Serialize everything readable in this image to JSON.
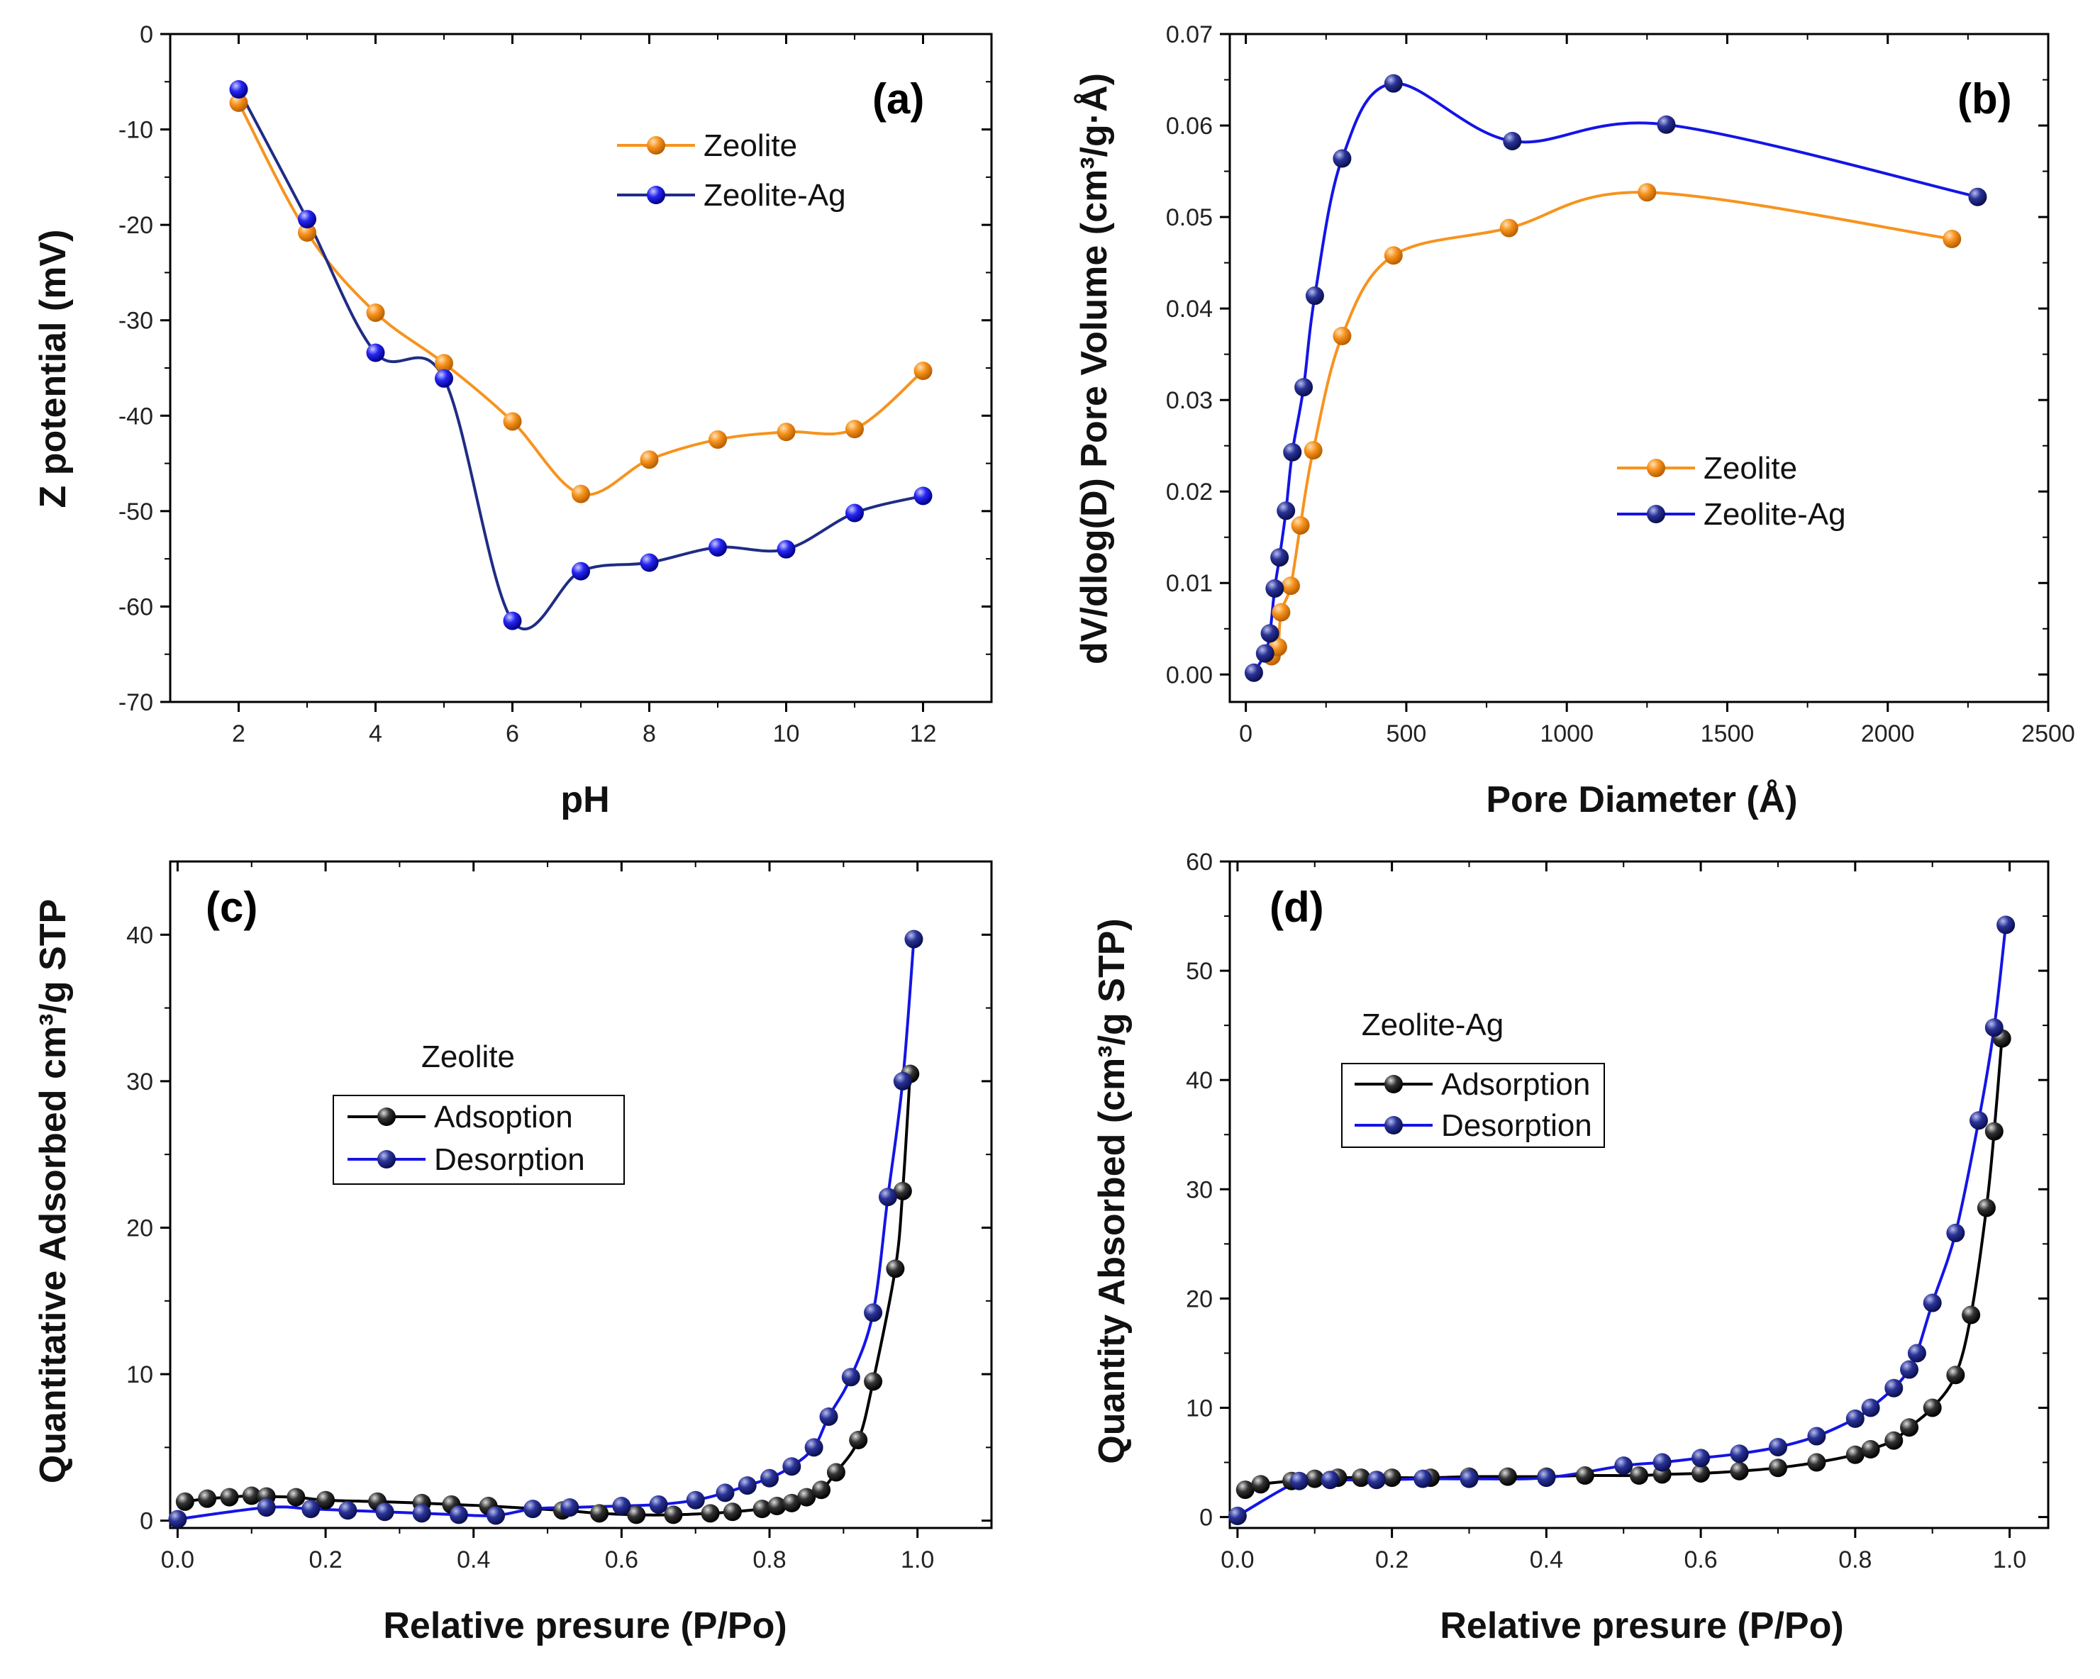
{
  "colors": {
    "orange": "#F7931E",
    "blue": "#1414E6",
    "navy": "#1F2C85",
    "black": "#000000"
  },
  "chart_data": [
    {
      "id": "a",
      "type": "line",
      "panel_tag": "(a)",
      "xlabel": "pH",
      "ylabel": "Z potential (mV)",
      "xlim": [
        1,
        13
      ],
      "ylim": [
        -70,
        0
      ],
      "xticks": [
        2,
        4,
        6,
        8,
        10,
        12
      ],
      "yticks": [
        0,
        -10,
        -20,
        -30,
        -40,
        -50,
        -60,
        -70
      ],
      "xtick_labels": [
        "2",
        "4",
        "6",
        "8",
        "10",
        "12"
      ],
      "ytick_labels": [
        "0",
        "-10",
        "-20",
        "-30",
        "-40",
        "-50",
        "-60",
        "-70"
      ],
      "legend": {
        "placement": "top-right",
        "boxed": false
      },
      "series": [
        {
          "name": "Zeolite",
          "marker": "orange",
          "line": "orange",
          "x": [
            2,
            3,
            4,
            5,
            6,
            7,
            8,
            9,
            10,
            11,
            12
          ],
          "y": [
            -7.2,
            -20.8,
            -29.2,
            -34.5,
            -40.6,
            -48.2,
            -44.6,
            -42.5,
            -41.7,
            -41.4,
            -35.3
          ]
        },
        {
          "name": "Zeolite-Ag",
          "marker": "blue",
          "line": "navy",
          "x": [
            2,
            3,
            4,
            5,
            6,
            7,
            8,
            9,
            10,
            11,
            12
          ],
          "y": [
            -5.8,
            -19.4,
            -33.4,
            -36.1,
            -61.5,
            -56.3,
            -55.4,
            -53.8,
            -54.0,
            -50.2,
            -48.4
          ]
        }
      ]
    },
    {
      "id": "b",
      "type": "line",
      "panel_tag": "(b)",
      "xlabel": "Pore Diameter (Å)",
      "ylabel": "dV/dlog(D) Pore Volume (cm³/g·Å)",
      "xlim": [
        -50,
        2500
      ],
      "ylim": [
        -0.003,
        0.07
      ],
      "xticks": [
        0,
        500,
        1000,
        1500,
        2000,
        2500
      ],
      "yticks": [
        0,
        0.01,
        0.02,
        0.03,
        0.04,
        0.05,
        0.06,
        0.07
      ],
      "xtick_labels": [
        "0",
        "500",
        "1000",
        "1500",
        "2000",
        "2500"
      ],
      "ytick_labels": [
        "0.00",
        "0.01",
        "0.02",
        "0.03",
        "0.04",
        "0.05",
        "0.06",
        "0.07"
      ],
      "legend": {
        "placement": "center-right",
        "boxed": false
      },
      "series": [
        {
          "name": "Zeolite",
          "marker": "orange",
          "line": "orange",
          "x": [
            80,
            100,
            110,
            140,
            170,
            210,
            300,
            460,
            820,
            1250,
            2200
          ],
          "y": [
            0.002,
            0.003,
            0.0068,
            0.0097,
            0.0163,
            0.0245,
            0.037,
            0.0458,
            0.0488,
            0.0527,
            0.0476
          ]
        },
        {
          "name": "Zeolite-Ag",
          "marker": "navy",
          "line": "blue",
          "x": [
            25,
            60,
            75,
            90,
            105,
            125,
            145,
            180,
            215,
            300,
            460,
            830,
            1310,
            2280
          ],
          "y": [
            0.0002,
            0.0023,
            0.0045,
            0.0094,
            0.0128,
            0.0179,
            0.0243,
            0.0314,
            0.0414,
            0.0564,
            0.0646,
            0.0583,
            0.0601,
            0.0522
          ]
        }
      ]
    },
    {
      "id": "c",
      "type": "line",
      "panel_tag": "(c)",
      "xlabel": "Relative presure (P/Po)",
      "ylabel": "Quantitative Adsorbed  cm³/g STP",
      "xlim": [
        -0.01,
        1.1
      ],
      "ylim": [
        -0.5,
        45
      ],
      "xticks": [
        0,
        0.2,
        0.4,
        0.6,
        0.8,
        1.0
      ],
      "yticks": [
        0,
        10,
        20,
        30,
        40
      ],
      "xtick_labels": [
        "0.0",
        "0.2",
        "0.4",
        "0.6",
        "0.8",
        "1.0"
      ],
      "ytick_labels": [
        "0",
        "10",
        "20",
        "30",
        "40"
      ],
      "legend": {
        "placement": "center-left",
        "boxed": true,
        "title": "Zeolite"
      },
      "series": [
        {
          "name": "Adsoption",
          "marker": "black",
          "line": "black",
          "x": [
            0.01,
            0.04,
            0.07,
            0.1,
            0.12,
            0.16,
            0.2,
            0.27,
            0.33,
            0.37,
            0.42,
            0.52,
            0.57,
            0.62,
            0.67,
            0.72,
            0.75,
            0.79,
            0.81,
            0.83,
            0.85,
            0.87,
            0.89,
            0.92,
            0.94,
            0.97,
            0.98,
            0.99
          ],
          "y": [
            1.3,
            1.5,
            1.6,
            1.7,
            1.65,
            1.6,
            1.4,
            1.3,
            1.2,
            1.1,
            1.0,
            0.7,
            0.5,
            0.4,
            0.4,
            0.5,
            0.6,
            0.8,
            1.0,
            1.2,
            1.6,
            2.1,
            3.3,
            5.5,
            9.5,
            17.2,
            22.5,
            30.5
          ]
        },
        {
          "name": "Desorption",
          "marker": "navy",
          "line": "blue",
          "x": [
            0.0,
            0.12,
            0.18,
            0.23,
            0.28,
            0.33,
            0.38,
            0.43,
            0.48,
            0.53,
            0.6,
            0.65,
            0.7,
            0.74,
            0.77,
            0.8,
            0.83,
            0.86,
            0.88,
            0.91,
            0.94,
            0.96,
            0.98,
            0.995
          ],
          "y": [
            0.1,
            0.9,
            0.8,
            0.7,
            0.6,
            0.5,
            0.4,
            0.35,
            0.8,
            0.9,
            1.0,
            1.1,
            1.4,
            1.9,
            2.4,
            2.9,
            3.7,
            5.0,
            7.1,
            9.8,
            14.2,
            22.1,
            30.0,
            39.7
          ]
        }
      ]
    },
    {
      "id": "d",
      "type": "line",
      "panel_tag": "(d)",
      "xlabel": "Relative presure (P/Po)",
      "ylabel": "Quantity Absorbed (cm³/g STP)",
      "xlim": [
        -0.01,
        1.05
      ],
      "ylim": [
        -1,
        60
      ],
      "xticks": [
        0,
        0.2,
        0.4,
        0.6,
        0.8,
        1.0
      ],
      "yticks": [
        0,
        10,
        20,
        30,
        40,
        50,
        60
      ],
      "xtick_labels": [
        "0.0",
        "0.2",
        "0.4",
        "0.6",
        "0.8",
        "1.0"
      ],
      "ytick_labels": [
        "0",
        "10",
        "20",
        "30",
        "40",
        "50",
        "60"
      ],
      "legend": {
        "placement": "center-left",
        "boxed": true,
        "title": "Zeolite-Ag"
      },
      "series": [
        {
          "name": "Adsorption",
          "marker": "black",
          "line": "black",
          "x": [
            0.01,
            0.03,
            0.07,
            0.1,
            0.13,
            0.16,
            0.2,
            0.25,
            0.3,
            0.35,
            0.4,
            0.45,
            0.52,
            0.55,
            0.6,
            0.65,
            0.7,
            0.75,
            0.8,
            0.82,
            0.85,
            0.87,
            0.9,
            0.93,
            0.95,
            0.97,
            0.98,
            0.99
          ],
          "y": [
            2.5,
            3.0,
            3.3,
            3.5,
            3.6,
            3.6,
            3.6,
            3.6,
            3.7,
            3.7,
            3.7,
            3.8,
            3.8,
            3.9,
            4.0,
            4.2,
            4.5,
            5.0,
            5.7,
            6.2,
            7.0,
            8.2,
            10.0,
            13.0,
            18.5,
            28.3,
            35.3,
            43.8
          ]
        },
        {
          "name": "Desorption",
          "marker": "navy",
          "line": "blue",
          "x": [
            0.0,
            0.08,
            0.12,
            0.18,
            0.24,
            0.3,
            0.4,
            0.5,
            0.55,
            0.6,
            0.65,
            0.7,
            0.75,
            0.8,
            0.82,
            0.85,
            0.87,
            0.88,
            0.9,
            0.93,
            0.96,
            0.98,
            0.995
          ],
          "y": [
            0.1,
            3.3,
            3.4,
            3.4,
            3.5,
            3.5,
            3.6,
            4.7,
            5.0,
            5.4,
            5.8,
            6.4,
            7.4,
            9.0,
            10.0,
            11.8,
            13.5,
            15.0,
            19.6,
            26.0,
            36.3,
            44.8,
            54.2
          ]
        }
      ]
    }
  ]
}
